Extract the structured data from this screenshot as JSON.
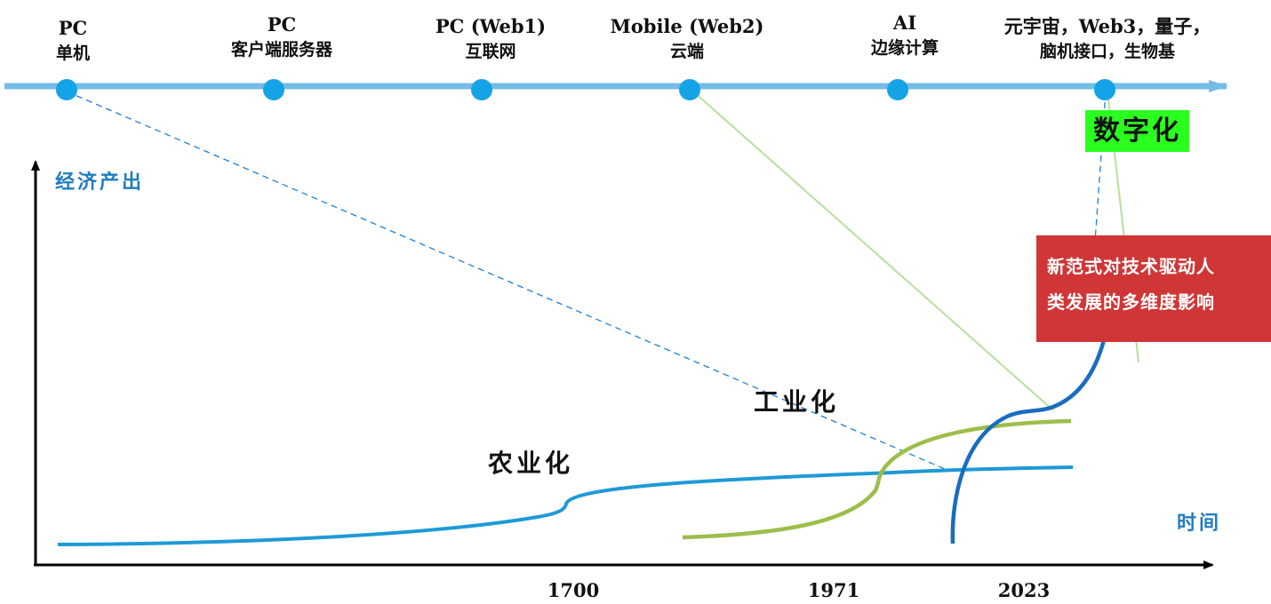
{
  "timeline": {
    "eras": [
      {
        "line1": "PC",
        "line2": "单机"
      },
      {
        "line1": "PC",
        "line2": "客户端服务器"
      },
      {
        "line1": "PC (Web1)",
        "line2": "互联网"
      },
      {
        "line1": "Mobile (Web2)",
        "line2": "云端"
      },
      {
        "line1": "AI",
        "line2": "边缘计算"
      },
      {
        "line1": "元宇宙，Web3，量子，",
        "line2": "脑机接口，生物基"
      }
    ],
    "line_color": "#74bde6",
    "dot_color": "#14a3e6"
  },
  "axes": {
    "y_label": "经济产出",
    "x_label": "时间",
    "x_ticks": [
      "1700",
      "1971",
      "2023"
    ]
  },
  "stages": {
    "agriculture": "农业化",
    "industrial": "工业化",
    "digital": "数字化"
  },
  "impact": {
    "line1": "新范式对技术驱动人",
    "line2": "类发展的多维度影响"
  },
  "colors": {
    "agriculture_curve": "#1e9ad6",
    "industrial_curve": "#9cbe4a",
    "digital_curve": "#1a6cc0",
    "impact_box": "#d03636",
    "digital_badge": "#2bff20",
    "axis_label": "#1f7cc2"
  }
}
